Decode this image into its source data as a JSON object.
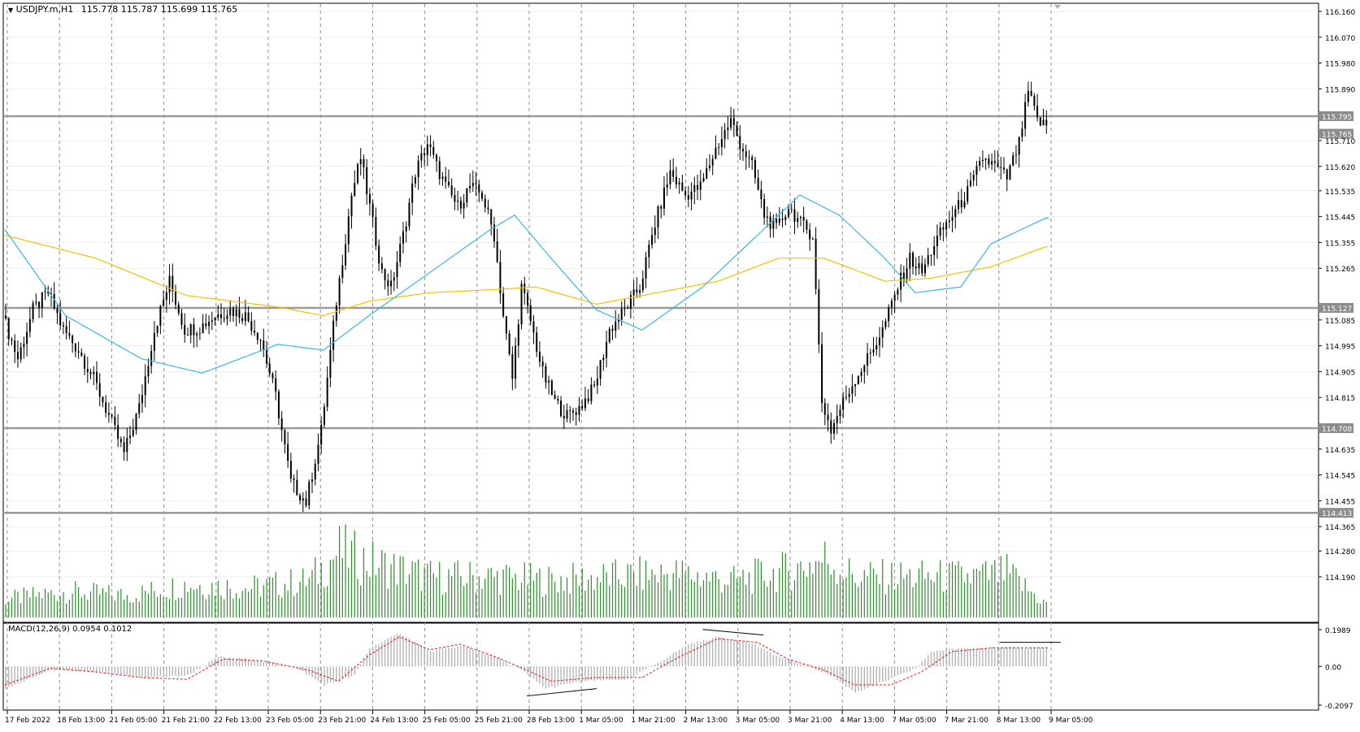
{
  "header": {
    "symbol": "USDJPY.m,H1",
    "ohlc": "115.778 115.787 115.699 115.765"
  },
  "macd_panel": {
    "label": "MACD(12,26,9) 0.0954 0.1012"
  },
  "colors": {
    "background": "#ffffff",
    "grid": "#8c8c8c",
    "candle": "#000000",
    "ma_fast": "#39b8e0",
    "ma_slow": "#f2c200",
    "volume": "#2e8b2e",
    "macd_hist": "#b4b4b4",
    "macd_signal": "#e02020",
    "level_line": "#9a9a9a",
    "price_tag_bg": "#8c8c8c",
    "price_tag_text": "#ffffff"
  },
  "chart_data": [
    {
      "type": "candlestick",
      "title": "USDJPY.m,H1",
      "timeframe": "H1",
      "ylim": [
        114.19,
        116.16
      ],
      "y_ticks": [
        "116.160",
        "116.070",
        "115.980",
        "115.890",
        "115.710",
        "115.620",
        "115.535",
        "115.445",
        "115.355",
        "115.265",
        "115.085",
        "114.995",
        "114.905",
        "114.815",
        "114.635",
        "114.545",
        "114.455",
        "114.365",
        "114.280",
        "114.190"
      ],
      "x_ticks": [
        "17 Feb 2022",
        "18 Feb 13:00",
        "21 Feb 05:00",
        "21 Feb 21:00",
        "22 Feb 13:00",
        "23 Feb 05:00",
        "23 Feb 21:00",
        "24 Feb 13:00",
        "25 Feb 05:00",
        "25 Feb 21:00",
        "28 Feb 13:00",
        "1 Mar 05:00",
        "1 Mar 21:00",
        "2 Mar 13:00",
        "3 Mar 05:00",
        "3 Mar 21:00",
        "4 Mar 13:00",
        "7 Mar 05:00",
        "7 Mar 21:00",
        "8 Mar 13:00",
        "9 Mar 05:00"
      ],
      "horizontal_levels": [
        {
          "price": 115.795,
          "label": "115.795"
        },
        {
          "price": 115.127,
          "label": "115.127"
        },
        {
          "price": 114.708,
          "label": "114.708"
        },
        {
          "price": 114.413,
          "label": "114.413"
        }
      ],
      "current_price": {
        "price": 115.765,
        "label": "115.765"
      },
      "price_path": [
        [
          0,
          115.1
        ],
        [
          5,
          114.95
        ],
        [
          10,
          115.12
        ],
        [
          15,
          115.18
        ],
        [
          20,
          115.05
        ],
        [
          25,
          114.98
        ],
        [
          30,
          114.88
        ],
        [
          35,
          114.75
        ],
        [
          40,
          114.62
        ],
        [
          45,
          114.78
        ],
        [
          50,
          115.05
        ],
        [
          55,
          115.22
        ],
        [
          60,
          115.05
        ],
        [
          65,
          115.06
        ],
        [
          70,
          115.1
        ],
        [
          75,
          115.12
        ],
        [
          80,
          115.1
        ],
        [
          85,
          115.02
        ],
        [
          90,
          114.82
        ],
        [
          95,
          114.52
        ],
        [
          100,
          114.45
        ],
        [
          105,
          114.7
        ],
        [
          110,
          115.15
        ],
        [
          115,
          115.52
        ],
        [
          118,
          115.65
        ],
        [
          122,
          115.42
        ],
        [
          125,
          115.25
        ],
        [
          128,
          115.2
        ],
        [
          132,
          115.38
        ],
        [
          136,
          115.6
        ],
        [
          140,
          115.7
        ],
        [
          143,
          115.62
        ],
        [
          146,
          115.55
        ],
        [
          150,
          115.48
        ],
        [
          154,
          115.55
        ],
        [
          158,
          115.52
        ],
        [
          162,
          115.38
        ],
        [
          165,
          115.1
        ],
        [
          168,
          114.88
        ],
        [
          171,
          115.2
        ],
        [
          174,
          115.08
        ],
        [
          178,
          114.9
        ],
        [
          182,
          114.8
        ],
        [
          186,
          114.75
        ],
        [
          190,
          114.78
        ],
        [
          195,
          114.85
        ],
        [
          200,
          115.05
        ],
        [
          205,
          115.12
        ],
        [
          210,
          115.2
        ],
        [
          215,
          115.42
        ],
        [
          220,
          115.6
        ],
        [
          225,
          115.52
        ],
        [
          230,
          115.55
        ],
        [
          235,
          115.68
        ],
        [
          240,
          115.78
        ],
        [
          243,
          115.7
        ],
        [
          247,
          115.62
        ],
        [
          251,
          115.45
        ],
        [
          255,
          115.4
        ],
        [
          259,
          115.48
        ],
        [
          263,
          115.42
        ],
        [
          267,
          115.38
        ],
        [
          270,
          114.8
        ],
        [
          273,
          114.7
        ],
        [
          277,
          114.8
        ],
        [
          281,
          114.88
        ],
        [
          285,
          114.95
        ],
        [
          290,
          115.05
        ],
        [
          295,
          115.2
        ],
        [
          299,
          115.3
        ],
        [
          303,
          115.25
        ],
        [
          307,
          115.35
        ],
        [
          311,
          115.42
        ],
        [
          315,
          115.48
        ],
        [
          319,
          115.55
        ],
        [
          323,
          115.65
        ],
        [
          327,
          115.62
        ],
        [
          331,
          115.58
        ],
        [
          335,
          115.7
        ],
        [
          338,
          115.88
        ],
        [
          341,
          115.78
        ],
        [
          343,
          115.765
        ]
      ],
      "ma_fast_path": [
        [
          0,
          115.4
        ],
        [
          20,
          115.1
        ],
        [
          45,
          114.95
        ],
        [
          65,
          114.9
        ],
        [
          90,
          115.0
        ],
        [
          105,
          114.98
        ],
        [
          120,
          115.1
        ],
        [
          140,
          115.25
        ],
        [
          160,
          115.4
        ],
        [
          168,
          115.45
        ],
        [
          180,
          115.3
        ],
        [
          195,
          115.12
        ],
        [
          210,
          115.05
        ],
        [
          230,
          115.2
        ],
        [
          250,
          115.4
        ],
        [
          262,
          115.52
        ],
        [
          275,
          115.45
        ],
        [
          290,
          115.3
        ],
        [
          300,
          115.18
        ],
        [
          315,
          115.2
        ],
        [
          325,
          115.35
        ],
        [
          343,
          115.44
        ]
      ],
      "ma_slow_path": [
        [
          0,
          115.38
        ],
        [
          30,
          115.3
        ],
        [
          60,
          115.17
        ],
        [
          90,
          115.13
        ],
        [
          105,
          115.1
        ],
        [
          120,
          115.15
        ],
        [
          140,
          115.18
        ],
        [
          160,
          115.19
        ],
        [
          175,
          115.2
        ],
        [
          195,
          115.14
        ],
        [
          215,
          115.18
        ],
        [
          235,
          115.22
        ],
        [
          255,
          115.3
        ],
        [
          270,
          115.3
        ],
        [
          290,
          115.22
        ],
        [
          305,
          115.23
        ],
        [
          325,
          115.27
        ],
        [
          343,
          115.34
        ]
      ]
    },
    {
      "type": "bar",
      "title": "",
      "series_name": "Volume",
      "envelope": [
        [
          0,
          0.25
        ],
        [
          20,
          0.35
        ],
        [
          40,
          0.3
        ],
        [
          60,
          0.45
        ],
        [
          80,
          0.4
        ],
        [
          100,
          0.5
        ],
        [
          110,
          0.9
        ],
        [
          120,
          0.75
        ],
        [
          140,
          0.55
        ],
        [
          160,
          0.55
        ],
        [
          180,
          0.5
        ],
        [
          200,
          0.55
        ],
        [
          220,
          0.6
        ],
        [
          240,
          0.5
        ],
        [
          260,
          0.65
        ],
        [
          270,
          0.8
        ],
        [
          280,
          0.55
        ],
        [
          300,
          0.55
        ],
        [
          320,
          0.55
        ],
        [
          330,
          0.6
        ],
        [
          343,
          0.18
        ]
      ]
    },
    {
      "type": "bar",
      "title": "MACD(12,26,9) 0.0954 0.1012",
      "ylim": [
        -0.2097,
        0.1989
      ],
      "y_ticks": [
        "0.1989",
        "0.00",
        "-0.2097"
      ],
      "histogram_path": [
        [
          0,
          -0.12
        ],
        [
          15,
          -0.02
        ],
        [
          30,
          -0.03
        ],
        [
          45,
          -0.06
        ],
        [
          60,
          -0.05
        ],
        [
          70,
          0.05
        ],
        [
          80,
          0.04
        ],
        [
          95,
          0.0
        ],
        [
          105,
          -0.1
        ],
        [
          115,
          -0.05
        ],
        [
          120,
          0.1
        ],
        [
          130,
          0.18
        ],
        [
          140,
          0.08
        ],
        [
          150,
          0.11
        ],
        [
          160,
          0.06
        ],
        [
          170,
          -0.02
        ],
        [
          178,
          -0.12
        ],
        [
          190,
          -0.08
        ],
        [
          205,
          -0.07
        ],
        [
          215,
          0.02
        ],
        [
          225,
          0.12
        ],
        [
          235,
          0.16
        ],
        [
          245,
          0.13
        ],
        [
          255,
          0.05
        ],
        [
          265,
          0.0
        ],
        [
          272,
          -0.05
        ],
        [
          280,
          -0.14
        ],
        [
          290,
          -0.08
        ],
        [
          300,
          -0.01
        ],
        [
          305,
          0.08
        ],
        [
          315,
          0.1
        ],
        [
          325,
          0.1
        ],
        [
          343,
          0.1
        ]
      ],
      "signal_path": [
        [
          0,
          -0.1
        ],
        [
          15,
          -0.01
        ],
        [
          30,
          -0.03
        ],
        [
          45,
          -0.06
        ],
        [
          60,
          -0.07
        ],
        [
          72,
          0.04
        ],
        [
          85,
          0.03
        ],
        [
          100,
          -0.02
        ],
        [
          110,
          -0.08
        ],
        [
          120,
          0.06
        ],
        [
          130,
          0.16
        ],
        [
          140,
          0.09
        ],
        [
          150,
          0.12
        ],
        [
          162,
          0.05
        ],
        [
          172,
          -0.02
        ],
        [
          180,
          -0.08
        ],
        [
          195,
          -0.06
        ],
        [
          210,
          -0.06
        ],
        [
          222,
          0.05
        ],
        [
          235,
          0.15
        ],
        [
          248,
          0.13
        ],
        [
          258,
          0.04
        ],
        [
          270,
          -0.02
        ],
        [
          280,
          -0.1
        ],
        [
          292,
          -0.1
        ],
        [
          302,
          -0.03
        ],
        [
          312,
          0.08
        ],
        [
          325,
          0.1
        ],
        [
          343,
          0.1
        ]
      ]
    }
  ]
}
